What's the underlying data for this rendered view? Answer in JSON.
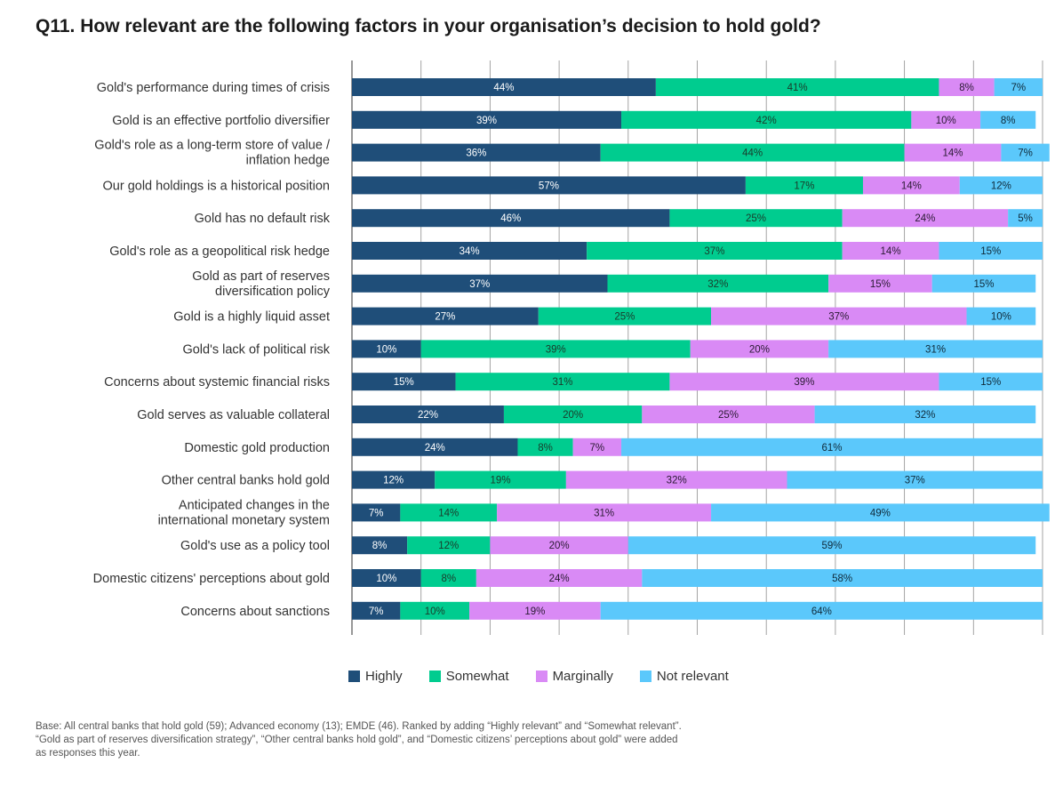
{
  "title": "Q11. How relevant are the following factors in your organisation’s decision to hold gold?",
  "chart_data": {
    "type": "bar",
    "orientation": "horizontal",
    "stacked": true,
    "xlim": [
      0,
      100
    ],
    "grid": true,
    "legend_position": "bottom",
    "categories": [
      [
        "Gold's performance during times of crisis"
      ],
      [
        "Gold is an effective portfolio diversifier"
      ],
      [
        "Gold's role as a long-term store of value /",
        "inflation hedge"
      ],
      [
        "Our gold holdings is a historical position"
      ],
      [
        "Gold has no default risk"
      ],
      [
        "Gold's role as a geopolitical risk hedge"
      ],
      [
        "Gold as part of reserves",
        "diversification policy"
      ],
      [
        "Gold is a highly liquid asset"
      ],
      [
        "Gold's lack of political risk"
      ],
      [
        "Concerns about systemic financial risks"
      ],
      [
        "Gold serves as valuable collateral"
      ],
      [
        "Domestic gold production"
      ],
      [
        "Other central banks hold gold"
      ],
      [
        "Anticipated changes in the",
        "international monetary system"
      ],
      [
        "Gold's use as a policy tool"
      ],
      [
        "Domestic citizens' perceptions about gold"
      ],
      [
        "Concerns about sanctions"
      ]
    ],
    "series": [
      {
        "name": "Highly",
        "color": "#1f4e79",
        "label_color": "#ffffff",
        "values": [
          44,
          39,
          36,
          57,
          46,
          34,
          37,
          27,
          10,
          15,
          22,
          24,
          12,
          7,
          8,
          10,
          7
        ]
      },
      {
        "name": "Somewhat",
        "color": "#00cc8f",
        "label_color": "#1a3a2a",
        "values": [
          41,
          42,
          44,
          17,
          25,
          37,
          32,
          25,
          39,
          31,
          20,
          8,
          19,
          14,
          12,
          8,
          10
        ]
      },
      {
        "name": "Marginally",
        "color": "#d98af5",
        "label_color": "#2a1a33",
        "values": [
          8,
          10,
          14,
          14,
          24,
          14,
          15,
          37,
          20,
          39,
          25,
          7,
          32,
          31,
          20,
          24,
          19
        ]
      },
      {
        "name": "Not relevant",
        "color": "#5bc8fb",
        "label_color": "#0f2a3a",
        "values": [
          7,
          8,
          7,
          12,
          5,
          15,
          15,
          10,
          31,
          15,
          32,
          61,
          37,
          49,
          59,
          58,
          64
        ]
      }
    ]
  },
  "footnote": [
    "Base: All central banks that hold gold (59); Advanced economy (13); EMDE (46). Ranked by adding “Highly relevant” and “Somewhat relevant”.",
    "“Gold as part of reserves diversification strategy”, “Other central banks hold gold”, and “Domestic citizens’ perceptions about gold” were added",
    "as responses this year."
  ]
}
